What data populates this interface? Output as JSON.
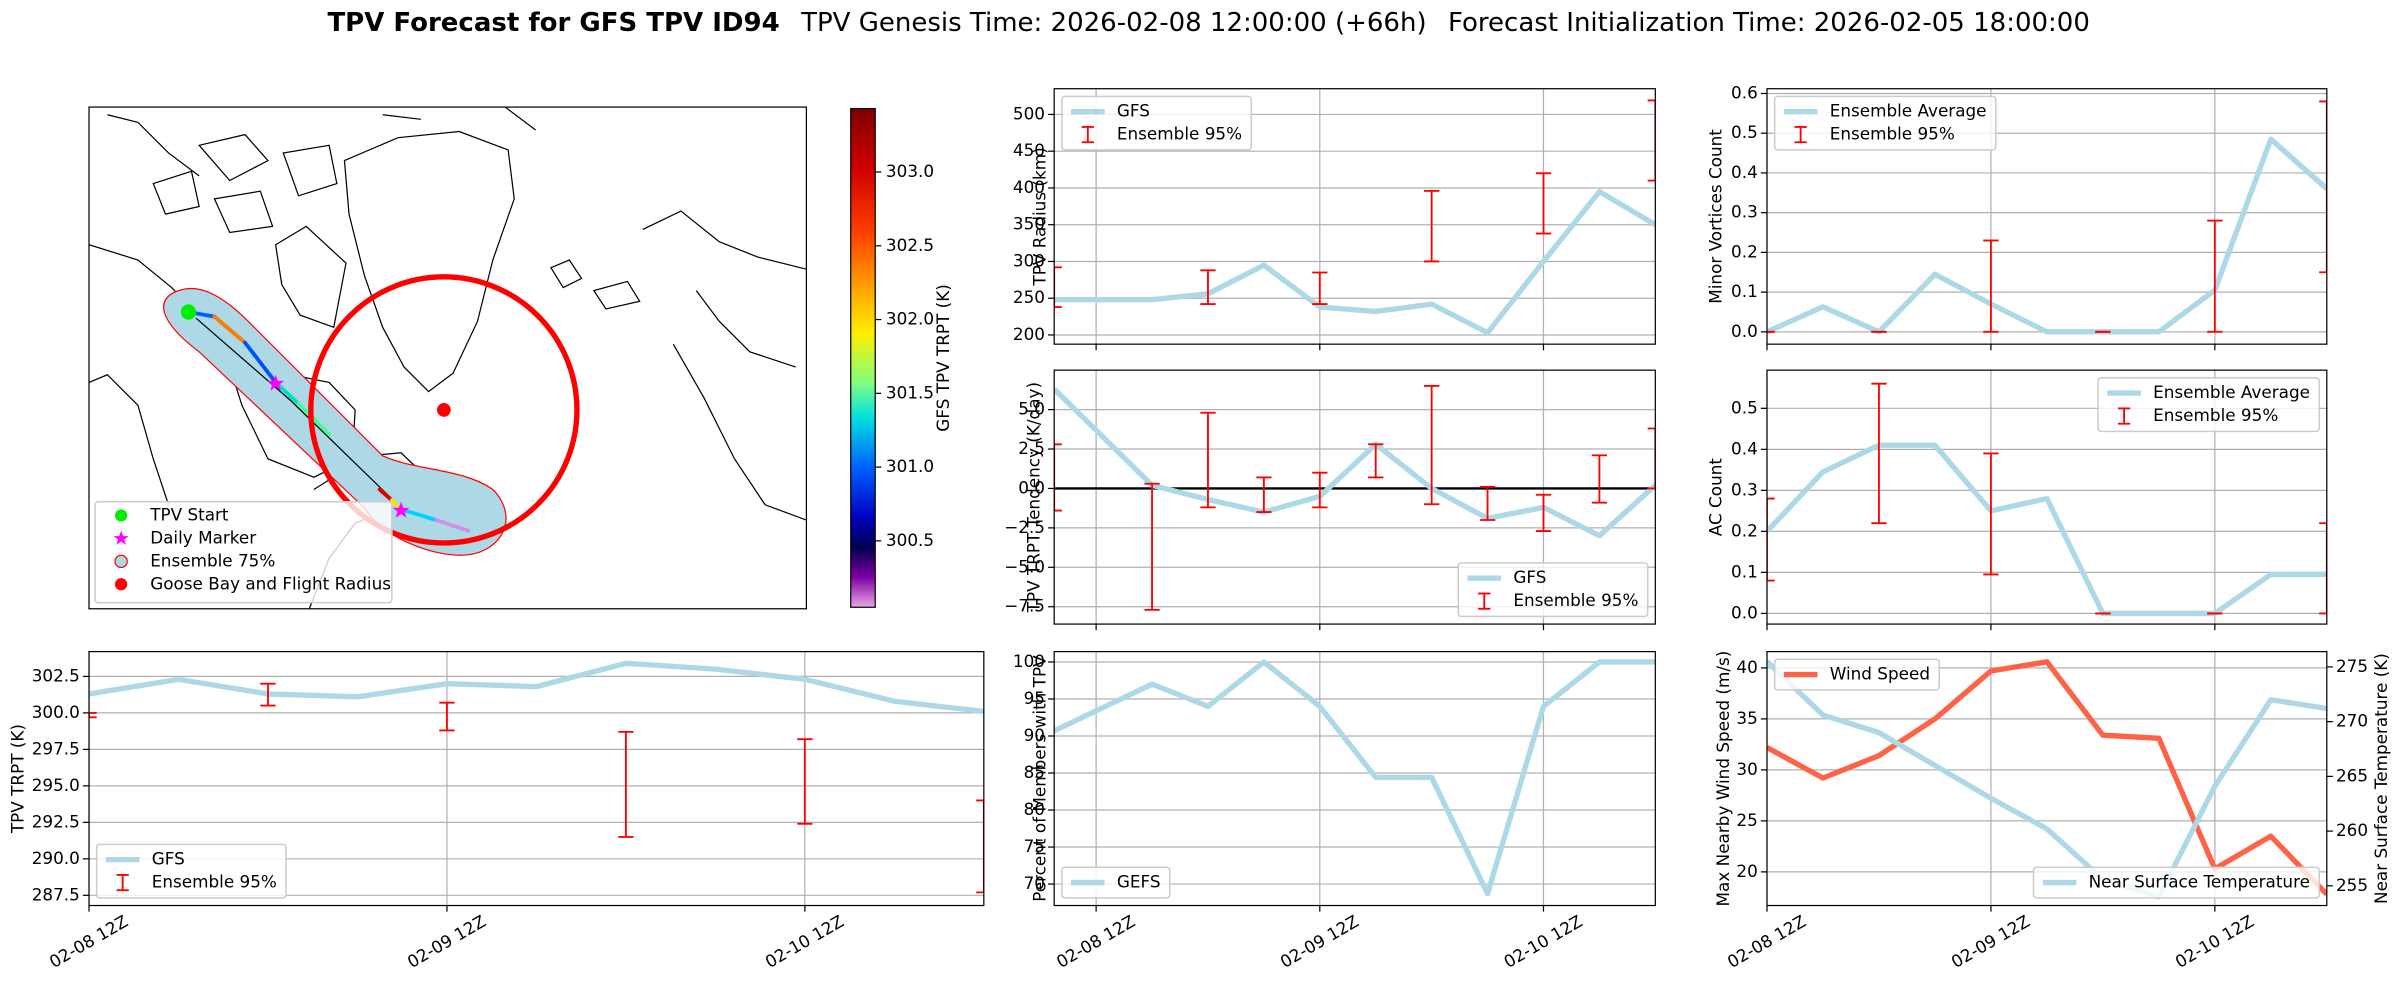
{
  "title": {
    "name": "TPV Forecast for GFS TPV ID94",
    "genesis": "TPV Genesis Time: 2026-02-08 12:00:00 (+66h)",
    "init": "Forecast Initialization Time: 2026-02-05 18:00:00"
  },
  "map": {
    "legend": [
      "TPV Start",
      "Daily Marker",
      "Ensemble 75%",
      "Goose Bay and Flight Radius"
    ],
    "colorbar": {
      "label": "GFS TPV TRPT (K)",
      "lim": [
        300.05,
        303.43
      ],
      "ticks": [
        300.5,
        {
          "value": 301,
          "label": "301.0"
        },
        301.5,
        {
          "value": 302,
          "label": "302.0"
        },
        302.5,
        {
          "value": 303,
          "label": "303.0"
        }
      ]
    }
  },
  "chart_data": [
    {
      "type": "line",
      "ylabel": "TPV TRPT (K)",
      "xlim": [
        0,
        60
      ],
      "xticks": [
        {
          "value": 0,
          "label": "02-08 12Z"
        },
        {
          "value": 24,
          "label": "02-09 12Z"
        },
        {
          "value": 48,
          "label": "02-10 12Z"
        }
      ],
      "ylim": [
        286.8,
        304.2
      ],
      "yticks": [
        287.5,
        {
          "value": 290,
          "label": "290.0"
        },
        292.5,
        {
          "value": 295,
          "label": "295.0"
        },
        297.5,
        {
          "value": 300,
          "label": "300.0"
        },
        302.5
      ],
      "grid": true,
      "legend": "lower left",
      "series": [
        {
          "name": "GFS",
          "color": "#add8e6",
          "x": [
            0,
            6,
            12,
            18,
            24,
            30,
            36,
            42,
            48,
            54,
            60
          ],
          "values": [
            301.3,
            302.3,
            301.3,
            301.1,
            302.0,
            301.8,
            303.4,
            303.0,
            302.3,
            300.8,
            300.1
          ]
        }
      ],
      "errorbars": {
        "name": "Ensemble 95%",
        "color": "#ff0000",
        "x": [
          0,
          12,
          24,
          36,
          48,
          60
        ],
        "low": [
          299.7,
          300.5,
          298.8,
          291.5,
          292.4,
          287.7
        ],
        "high": [
          300.0,
          302.0,
          300.7,
          298.7,
          298.2,
          294.0
        ]
      }
    },
    {
      "type": "line",
      "ylabel": "TPV Radius (km)",
      "xlim": [
        -4.5,
        60
      ],
      "xticks": [
        0,
        24,
        48
      ],
      "ylim": [
        187.5,
        535
      ],
      "yticks": [
        200,
        250,
        300,
        350,
        400,
        450,
        500
      ],
      "grid": true,
      "legend": "upper left",
      "series": [
        {
          "name": "GFS",
          "color": "#add8e6",
          "x": [
            -4.5,
            6,
            12,
            18,
            24,
            30,
            36,
            42,
            48,
            54,
            60
          ],
          "values": [
            248,
            248,
            256,
            295,
            238,
            232,
            242,
            203,
            300,
            395,
            350
          ]
        }
      ],
      "errorbars": {
        "name": "Ensemble 95%",
        "color": "#ff0000",
        "x": [
          -4.5,
          12,
          24,
          36,
          48,
          60
        ],
        "low": [
          238,
          242,
          242,
          300,
          338,
          410
        ],
        "high": [
          292,
          288,
          285,
          396,
          420,
          519
        ]
      }
    },
    {
      "type": "line",
      "ylabel": "TPV TRPT Tendency (K/day)",
      "xlim": [
        -4.5,
        60
      ],
      "xticks": [
        0,
        24,
        48
      ],
      "ylim": [
        -8.6,
        7.5
      ],
      "yticks": [
        {
          "value": 5,
          "label": "5.0"
        },
        2.5,
        {
          "value": 0,
          "label": "0.0"
        },
        {
          "value": -2.5,
          "label": "−2.5"
        },
        {
          "value": -5,
          "label": "−5.0"
        },
        {
          "value": -7.5,
          "label": "−7.5"
        }
      ],
      "grid": true,
      "zeroline": true,
      "legend": "lower right",
      "series": [
        {
          "name": "GFS",
          "color": "#add8e6",
          "x": [
            -4.5,
            6,
            12,
            18,
            24,
            30,
            36,
            42,
            48,
            54,
            60
          ],
          "values": [
            6.3,
            0.2,
            -0.7,
            -1.5,
            -0.5,
            2.8,
            0,
            -1.9,
            -1.2,
            -3.0,
            0.2
          ]
        }
      ],
      "errorbars": {
        "name": "Ensemble 95%",
        "color": "#ff0000",
        "x": [
          -4.5,
          6,
          12,
          18,
          24,
          30,
          36,
          42,
          48,
          54,
          60
        ],
        "low": [
          -1.4,
          -7.7,
          -1.2,
          -1.5,
          -1.2,
          0.7,
          -1.0,
          -2.0,
          -2.7,
          -0.9,
          0
        ],
        "high": [
          2.8,
          0.3,
          4.8,
          0.7,
          1.0,
          2.8,
          6.5,
          0.1,
          -0.4,
          2.1,
          3.8
        ]
      }
    },
    {
      "type": "line",
      "ylabel": "Percent of Members with TPV",
      "xlim": [
        -4.5,
        60
      ],
      "xticks": [
        {
          "value": 0,
          "label": "02-08 12Z"
        },
        {
          "value": 24,
          "label": "02-09 12Z"
        },
        {
          "value": 48,
          "label": "02-10 12Z"
        }
      ],
      "ylim": [
        67.1,
        101.4
      ],
      "yticks": [
        70,
        75,
        80,
        85,
        90,
        95,
        100
      ],
      "grid": true,
      "legend": "lower left",
      "series": [
        {
          "name": "GEFS",
          "color": "#add8e6",
          "x": [
            -4.5,
            6,
            12,
            18,
            24,
            30,
            36,
            42,
            48,
            54,
            60
          ],
          "values": [
            90.7,
            97,
            94,
            100,
            94,
            84.4,
            84.4,
            68.7,
            94,
            100,
            100
          ]
        }
      ]
    },
    {
      "type": "line",
      "ylabel": "Minor Vortices Count",
      "xlim": [
        0,
        60
      ],
      "xticks": [
        0,
        24,
        48
      ],
      "ylim": [
        -0.031,
        0.612
      ],
      "yticks": [
        {
          "value": 0,
          "label": "0.0"
        },
        0.1,
        0.2,
        0.3,
        0.4,
        0.5,
        0.6
      ],
      "grid": true,
      "legend": "upper left",
      "series": [
        {
          "name": "Ensemble Average",
          "color": "#add8e6",
          "x": [
            0,
            6,
            12,
            18,
            24,
            30,
            36,
            42,
            48,
            54,
            60
          ],
          "values": [
            0,
            0.063,
            0,
            0.145,
            0.07,
            0,
            0,
            0,
            0.105,
            0.485,
            0.36
          ]
        }
      ],
      "errorbars": {
        "name": "Ensemble 95%",
        "color": "#ff0000",
        "x": [
          0,
          12,
          24,
          36,
          48,
          60
        ],
        "low": [
          0,
          0,
          0,
          0,
          0,
          0.15
        ],
        "high": [
          0,
          0,
          0.23,
          0,
          0.28,
          0.58
        ]
      }
    },
    {
      "type": "line",
      "ylabel": "AC Count",
      "xlim": [
        0,
        60
      ],
      "xticks": [
        0,
        24,
        48
      ],
      "ylim": [
        -0.026,
        0.593
      ],
      "yticks": [
        {
          "value": 0,
          "label": "0.0"
        },
        0.1,
        0.2,
        0.3,
        0.4,
        0.5
      ],
      "grid": true,
      "legend": "upper right",
      "series": [
        {
          "name": "Ensemble Average",
          "color": "#add8e6",
          "x": [
            0,
            6,
            12,
            18,
            24,
            30,
            36,
            42,
            48,
            54,
            60
          ],
          "values": [
            0.2,
            0.345,
            0.41,
            0.41,
            0.25,
            0.28,
            0,
            0,
            0,
            0.095,
            0.095
          ]
        }
      ],
      "errorbars": {
        "name": "Ensemble 95%",
        "color": "#ff0000",
        "x": [
          0,
          12,
          24,
          36,
          48,
          60
        ],
        "low": [
          0.08,
          0.22,
          0.095,
          0,
          0,
          0
        ],
        "high": [
          0.28,
          0.56,
          0.39,
          0,
          0,
          0.22
        ]
      }
    },
    {
      "type": "line",
      "ylabel": "Max Nearby Wind Speed (m/s)",
      "y2label": "Near Surface Temperature (K)",
      "ycolor": "#ff6347",
      "y2color": "#4169e1",
      "xlim": [
        0,
        60
      ],
      "xticks": [
        {
          "value": 0,
          "label": "02-08 12Z"
        },
        {
          "value": 24,
          "label": "02-09 12Z"
        },
        {
          "value": 48,
          "label": "02-10 12Z"
        }
      ],
      "ylim": [
        16.7,
        41.6
      ],
      "yticks": [
        20,
        25,
        30,
        35,
        40
      ],
      "y2lim": [
        253.2,
        276.4
      ],
      "y2ticks": [
        255,
        260,
        265,
        270,
        275
      ],
      "grid": true,
      "series": [
        {
          "name": "Wind Speed",
          "color": "#ff6347",
          "legend": "upper left",
          "x": [
            0,
            6,
            12,
            18,
            24,
            30,
            36,
            42,
            48,
            54,
            60
          ],
          "values": [
            32.2,
            29.2,
            31.4,
            35,
            39.7,
            40.6,
            33.4,
            33.1,
            20.3,
            23.5,
            17.8
          ]
        },
        {
          "name": "Near Surface Temperature",
          "color": "#add8e6",
          "axis": "y2",
          "legend": "lower right",
          "x": [
            0,
            6,
            12,
            18,
            24,
            30,
            36,
            42,
            48,
            54,
            60
          ],
          "values": [
            275.5,
            270.6,
            269,
            266,
            263,
            260.2,
            255.6,
            254,
            264.1,
            272,
            271.2
          ]
        }
      ]
    }
  ]
}
